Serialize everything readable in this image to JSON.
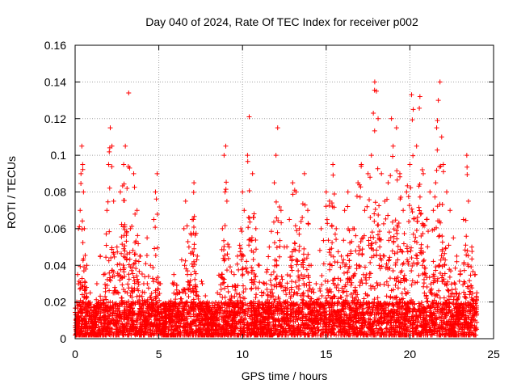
{
  "chart_data": {
    "type": "scatter",
    "title": "Day 040 of 2024, Rate Of TEC Index for receiver p002",
    "xlabel": "GPS time / hours",
    "ylabel": "ROTI / TECUs",
    "xlim": [
      0,
      25
    ],
    "ylim": [
      0,
      0.16
    ],
    "xticks": [
      "0",
      "5",
      "10",
      "15",
      "20",
      "25"
    ],
    "yticks": [
      "0",
      "0.02",
      "0.04",
      "0.06",
      "0.08",
      "0.1",
      "0.12",
      "0.14",
      "0.16"
    ],
    "grid": true,
    "marker": "+",
    "color": "#ff0000",
    "series": [
      {
        "values_note_points": [
          [
            0.05,
            0.005
          ],
          [
            0.1,
            0.02
          ],
          [
            0.15,
            0.035
          ],
          [
            0.2,
            0.06
          ],
          [
            0.3,
            0.07
          ],
          [
            0.35,
            0.09
          ],
          [
            0.4,
            0.105
          ],
          [
            0.45,
            0.095
          ],
          [
            0.5,
            0.08
          ],
          [
            0.55,
            0.06
          ],
          [
            0.7,
            0.04
          ],
          [
            0.9,
            0.025
          ],
          [
            1.1,
            0.015
          ],
          [
            1.3,
            0.03
          ],
          [
            1.5,
            0.045
          ],
          [
            1.7,
            0.035
          ],
          [
            1.9,
            0.07
          ],
          [
            2.0,
            0.095
          ],
          [
            2.1,
            0.115
          ],
          [
            2.2,
            0.105
          ],
          [
            2.3,
            0.075
          ],
          [
            2.5,
            0.05
          ],
          [
            2.7,
            0.08
          ],
          [
            2.9,
            0.095
          ],
          [
            3.0,
            0.105
          ],
          [
            3.1,
            0.082
          ],
          [
            3.2,
            0.134
          ],
          [
            3.3,
            0.06
          ],
          [
            3.5,
            0.09
          ],
          [
            3.7,
            0.07
          ],
          [
            3.9,
            0.045
          ],
          [
            4.1,
            0.03
          ],
          [
            4.3,
            0.055
          ],
          [
            4.5,
            0.04
          ],
          [
            4.7,
            0.065
          ],
          [
            4.8,
            0.08
          ],
          [
            4.9,
            0.09
          ],
          [
            5.1,
            0.03
          ],
          [
            5.3,
            0.015
          ],
          [
            5.6,
            0.02
          ],
          [
            5.9,
            0.035
          ],
          [
            6.2,
            0.025
          ],
          [
            6.5,
            0.06
          ],
          [
            6.6,
            0.075
          ],
          [
            6.8,
            0.05
          ],
          [
            7.0,
            0.065
          ],
          [
            7.1,
            0.085
          ],
          [
            7.3,
            0.045
          ],
          [
            7.6,
            0.03
          ],
          [
            7.9,
            0.02
          ],
          [
            8.2,
            0.015
          ],
          [
            8.5,
            0.025
          ],
          [
            8.8,
            0.06
          ],
          [
            8.9,
            0.1
          ],
          [
            9.0,
            0.105
          ],
          [
            9.2,
            0.05
          ],
          [
            9.5,
            0.035
          ],
          [
            9.7,
            0.045
          ],
          [
            9.9,
            0.06
          ],
          [
            10.0,
            0.08
          ],
          [
            10.1,
            0.07
          ],
          [
            10.3,
            0.1
          ],
          [
            10.4,
            0.121
          ],
          [
            10.6,
            0.09
          ],
          [
            10.8,
            0.06
          ],
          [
            11.0,
            0.04
          ],
          [
            11.3,
            0.03
          ],
          [
            11.6,
            0.05
          ],
          [
            11.9,
            0.085
          ],
          [
            12.0,
            0.1
          ],
          [
            12.1,
            0.115
          ],
          [
            12.3,
            0.07
          ],
          [
            12.5,
            0.05
          ],
          [
            12.8,
            0.065
          ],
          [
            13.0,
            0.085
          ],
          [
            13.2,
            0.08
          ],
          [
            13.4,
            0.06
          ],
          [
            13.7,
            0.09
          ],
          [
            13.9,
            0.07
          ],
          [
            14.1,
            0.04
          ],
          [
            14.4,
            0.03
          ],
          [
            14.7,
            0.06
          ],
          [
            15.0,
            0.08
          ],
          [
            15.2,
            0.075
          ],
          [
            15.4,
            0.095
          ],
          [
            15.6,
            0.06
          ],
          [
            15.9,
            0.045
          ],
          [
            16.1,
            0.07
          ],
          [
            16.3,
            0.08
          ],
          [
            16.6,
            0.06
          ],
          [
            16.9,
            0.085
          ],
          [
            17.1,
            0.095
          ],
          [
            17.3,
            0.07
          ],
          [
            17.5,
            0.09
          ],
          [
            17.7,
            0.1
          ],
          [
            17.9,
            0.14
          ],
          [
            18.0,
            0.135
          ],
          [
            18.1,
            0.12
          ],
          [
            18.3,
            0.09
          ],
          [
            18.5,
            0.075
          ],
          [
            18.7,
            0.085
          ],
          [
            18.9,
            0.12
          ],
          [
            19.0,
            0.105
          ],
          [
            19.2,
            0.115
          ],
          [
            19.4,
            0.09
          ],
          [
            19.6,
            0.07
          ],
          [
            19.8,
            0.08
          ],
          [
            20.0,
            0.095
          ],
          [
            20.1,
            0.133
          ],
          [
            20.2,
            0.125
          ],
          [
            20.4,
            0.105
          ],
          [
            20.6,
            0.132
          ],
          [
            20.8,
            0.09
          ],
          [
            21.0,
            0.065
          ],
          [
            21.2,
            0.08
          ],
          [
            21.4,
            0.07
          ],
          [
            21.6,
            0.115
          ],
          [
            21.7,
            0.13
          ],
          [
            21.8,
            0.14
          ],
          [
            21.9,
            0.11
          ],
          [
            22.0,
            0.095
          ],
          [
            22.2,
            0.08
          ],
          [
            22.4,
            0.07
          ],
          [
            22.6,
            0.055
          ],
          [
            22.8,
            0.045
          ],
          [
            23.0,
            0.035
          ],
          [
            23.2,
            0.065
          ],
          [
            23.4,
            0.1
          ],
          [
            23.5,
            0.075
          ],
          [
            23.7,
            0.05
          ],
          [
            23.9,
            0.035
          ],
          [
            24.0,
            0.025
          ]
        ]
      }
    ]
  }
}
